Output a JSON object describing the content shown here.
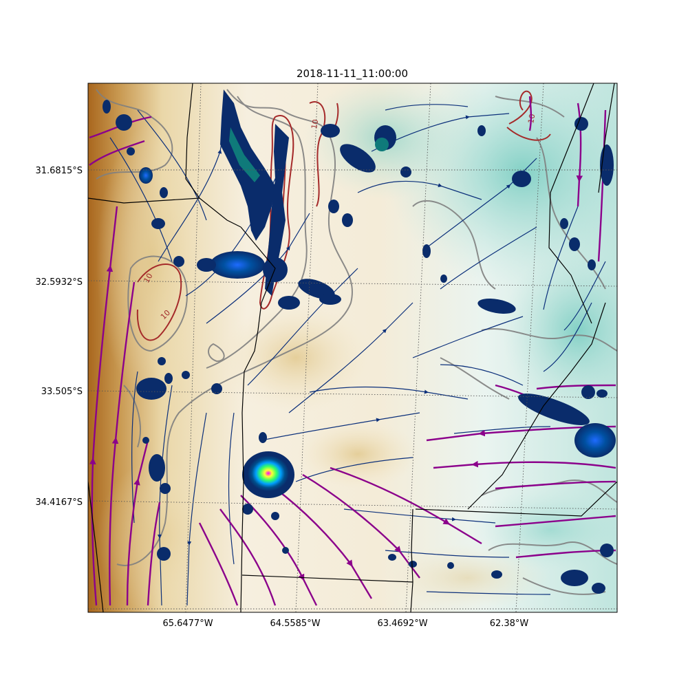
{
  "title": "2018-11-11_11:00:00",
  "lat_ticks": [
    "31.6815°S",
    "32.5932°S",
    "33.505°S",
    "34.4167°S"
  ],
  "lon_ticks": [
    "65.6477°W",
    "64.5585°W",
    "63.4692°W",
    "62.38°W"
  ],
  "contour_labels": [
    "10",
    "10",
    "10",
    "10",
    "10"
  ],
  "colors": {
    "terrain_dark": "#a9671e",
    "terrain_mid": "#e4cf9c",
    "terrain_light": "#f6efdf",
    "terrain_teal": "#9ed8d0",
    "streamline_thin": "#0b2f7a",
    "streamline_thick": "#8b008b",
    "contour_gray": "#808080",
    "contour_red": "#a52a2a",
    "reflectivity_low": "#0a2c6b",
    "reflectivity_mid": "#00a0a0",
    "reflectivity_high": "#ffff33",
    "border": "#000000"
  }
}
